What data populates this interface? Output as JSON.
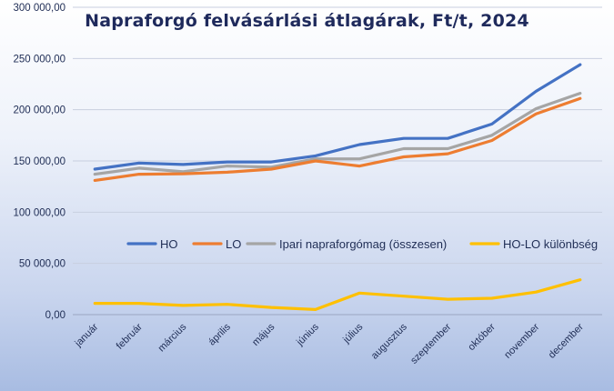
{
  "chart_data": {
    "type": "line",
    "title": "Napraforgó  felvásárlási  átlagárak,  Ft/t, 2024",
    "categories": [
      "január",
      "február",
      "március",
      "április",
      "május",
      "június",
      "július",
      "augusztus",
      "szeptember",
      "október",
      "november",
      "december"
    ],
    "yticks": [
      "0,00",
      "50 000,00",
      "100 000,00",
      "150 000,00",
      "200 000,00",
      "250 000,00",
      "300 000,00"
    ],
    "ylim": [
      0,
      300000
    ],
    "grid": true,
    "legend_position": "inside-center-right",
    "series": [
      {
        "name": "HO",
        "color": "#4472c4",
        "values": [
          142000,
          148000,
          146500,
          149000,
          149000,
          155000,
          166000,
          172000,
          172000,
          186000,
          218000,
          244000
        ]
      },
      {
        "name": "LO",
        "color": "#ed7d31",
        "values": [
          131000,
          137000,
          137500,
          139000,
          142000,
          150000,
          145000,
          154000,
          157000,
          170000,
          196000,
          211000
        ]
      },
      {
        "name": "Ipari napraforgómag (összesen)",
        "color": "#a5a5a5",
        "values": [
          137000,
          143000,
          139500,
          145000,
          144000,
          152000,
          152000,
          162000,
          162000,
          175000,
          201000,
          216000
        ]
      },
      {
        "name": "HO-LO különbség",
        "color": "#ffc000",
        "values": [
          11000,
          11000,
          9000,
          10000,
          7000,
          5000,
          21000,
          18000,
          15000,
          16000,
          22000,
          34000
        ]
      }
    ]
  }
}
